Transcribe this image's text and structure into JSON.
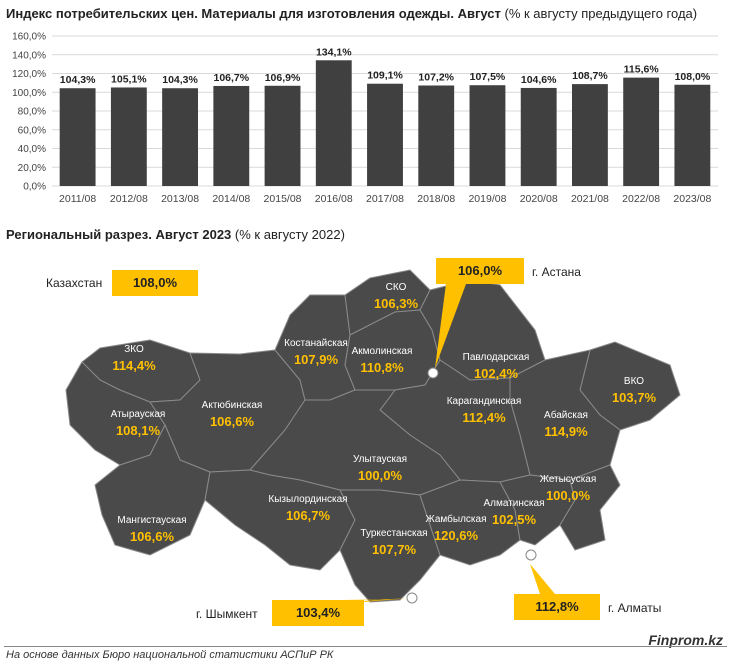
{
  "title": {
    "bold": "Индекс потребительских цен. Материалы для изготовления одежды. Август",
    "normal": " (% к августу предыдущего года)"
  },
  "chart_data": {
    "type": "bar",
    "categories": [
      "2011/08",
      "2012/08",
      "2013/08",
      "2014/08",
      "2015/08",
      "2016/08",
      "2017/08",
      "2018/08",
      "2019/08",
      "2020/08",
      "2021/08",
      "2022/08",
      "2023/08"
    ],
    "values": [
      104.3,
      105.1,
      104.3,
      106.7,
      106.9,
      134.1,
      109.1,
      107.2,
      107.5,
      104.6,
      108.7,
      115.6,
      108.0
    ],
    "value_labels": [
      "104,3%",
      "105,1%",
      "104,3%",
      "106,7%",
      "106,9%",
      "134,1%",
      "109,1%",
      "107,2%",
      "107,5%",
      "104,6%",
      "108,7%",
      "115,6%",
      "108,0%"
    ],
    "ylim": [
      0,
      160
    ],
    "yticks": [
      "0,0%",
      "20,0%",
      "40,0%",
      "60,0%",
      "80,0%",
      "100,0%",
      "120,0%",
      "140,0%",
      "160,0%"
    ],
    "grid": true,
    "bar_color": "#404040"
  },
  "region_title": {
    "bold": "Региональный разрез. Август 2023",
    "normal": " (% к августу 2022)"
  },
  "kazakhstan": {
    "label": "Казахстан",
    "value": "108,0%"
  },
  "regions": [
    {
      "id": "zko",
      "name": "ЗКО",
      "value": "114,4%"
    },
    {
      "id": "atyrau",
      "name": "Атырауская",
      "value": "108,1%"
    },
    {
      "id": "aktobe",
      "name": "Актюбинская",
      "value": "106,6%"
    },
    {
      "id": "mangystau",
      "name": "Мангистауская",
      "value": "106,6%"
    },
    {
      "id": "kostanay",
      "name": "Костанайская",
      "value": "107,9%"
    },
    {
      "id": "sko",
      "name": "СКО",
      "value": "106,3%"
    },
    {
      "id": "akmola",
      "name": "Акмолинская",
      "value": "110,8%"
    },
    {
      "id": "pavlodar",
      "name": "Павлодарская",
      "value": "102,4%"
    },
    {
      "id": "karaganda",
      "name": "Карагандинская",
      "value": "112,4%"
    },
    {
      "id": "vko",
      "name": "ВКО",
      "value": "103,7%"
    },
    {
      "id": "abay",
      "name": "Абайская",
      "value": "114,9%"
    },
    {
      "id": "ulytau",
      "name": "Улытауская",
      "value": "100,0%"
    },
    {
      "id": "zhetysu",
      "name": "Жетысуская",
      "value": "100,0%"
    },
    {
      "id": "kyzylorda",
      "name": "Кызылординская",
      "value": "106,7%"
    },
    {
      "id": "almaty-region",
      "name": "Алматинская",
      "value": "102,5%"
    },
    {
      "id": "zhambyl",
      "name": "Жамбылская",
      "value": "120,6%"
    },
    {
      "id": "turkestan",
      "name": "Туркестанская",
      "value": "107,7%"
    }
  ],
  "cities": [
    {
      "id": "astana",
      "name": "г. Астана",
      "value": "106,0%"
    },
    {
      "id": "shymkent",
      "name": "г. Шымкент",
      "value": "103,4%"
    },
    {
      "id": "almaty",
      "name": "г. Алматы",
      "value": "112,8%"
    }
  ],
  "colors": {
    "map_fill": "#4a4a4a",
    "region_border": "#8a8a8a",
    "value_color": "#ffc000",
    "callout": "#ffc000"
  },
  "source": "На основе данных Бюро национальной статистики АСПиР РК",
  "brand": "Finprom.kz"
}
